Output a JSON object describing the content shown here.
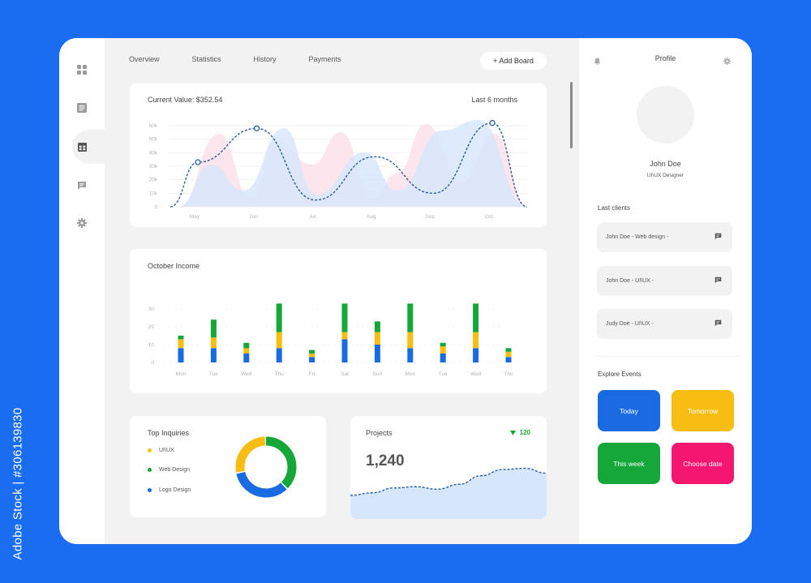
{
  "colors": {
    "page_bg": "#1a6df0",
    "blue": "#1a6be2",
    "yellow": "#f7bd13",
    "green": "#15a73a",
    "pink": "#f4166f",
    "line_dashed": "#2a5d9c",
    "area_blue": "#d6e6fb",
    "area_pink": "#fbe1ea"
  },
  "sidebar": {
    "icons": [
      "dashboard-grid-icon",
      "document-list-icon",
      "calendar-icon",
      "chat-icon",
      "settings-gear-icon"
    ]
  },
  "nav": {
    "tabs": [
      "Overview",
      "Statistics",
      "History",
      "Payments"
    ],
    "add_board": "+ Add Board"
  },
  "line_card": {
    "title": "Current Value: $352.54",
    "period": "Last 6 months"
  },
  "bar_card": {
    "title": "October Income"
  },
  "inquiries": {
    "title": "Top Inquiries",
    "items": [
      {
        "label": "UI\\UX",
        "color": "#f7bd13"
      },
      {
        "label": "Web Design",
        "color": "#15a73a"
      },
      {
        "label": "Logo Design",
        "color": "#1a6be2"
      }
    ]
  },
  "projects": {
    "title": "Projects",
    "value": "1,240",
    "change": "120",
    "change_icon": "triangle-down-icon"
  },
  "profile": {
    "label": "Profile",
    "name": "John Doe",
    "role": "UI\\UX Designer"
  },
  "last_clients": {
    "title": "Last clients",
    "items": [
      "John Doe - Web design -",
      "John Doe - UI\\UX -",
      "Judy Doe - UI\\UX -"
    ]
  },
  "events": {
    "title": "Explore Events",
    "buttons": [
      {
        "label": "Today",
        "color": "#1a6be2"
      },
      {
        "label": "Tomorrow",
        "color": "#f7bd13"
      },
      {
        "label": "This week",
        "color": "#15a73a"
      },
      {
        "label": "Choose date",
        "color": "#f4166f"
      }
    ]
  },
  "watermark": "Adobe Stock | #306139830",
  "chart_data": [
    {
      "type": "line",
      "x": [
        "May",
        "Jun",
        "Jul",
        "Aug",
        "Sep",
        "Oct"
      ],
      "y_ticks": [
        "0",
        "10k",
        "20k",
        "30k",
        "40k",
        "50k",
        "60k"
      ],
      "ylim": [
        0,
        60000
      ],
      "grid": true,
      "series_points": [
        {
          "x": "May",
          "y": 33000
        },
        {
          "x": "Jun",
          "y": 58000
        },
        {
          "x": "Jul",
          "y": 5000
        },
        {
          "x": "Aug",
          "y": 37000
        },
        {
          "x": "Sep",
          "y": 10000
        },
        {
          "x": "Oct",
          "y": 62000
        }
      ],
      "markers": [
        {
          "x": "May",
          "y": 33000
        },
        {
          "x": "Jun",
          "y": 58000
        },
        {
          "x": "Oct",
          "y": 62000
        }
      ]
    },
    {
      "type": "bar",
      "stacked": true,
      "categories": [
        "Mon",
        "Tue",
        "Wed",
        "Thu",
        "Fri",
        "Sat",
        "Sun",
        "Mon",
        "Tue",
        "Wed",
        "Thu"
      ],
      "y_ticks": [
        "0",
        "10",
        "20",
        "30"
      ],
      "ylim": [
        0,
        35
      ],
      "series": [
        {
          "color": "#1a6be2",
          "values": [
            8,
            8,
            5,
            8,
            3,
            13,
            10,
            8,
            5,
            8,
            3
          ]
        },
        {
          "color": "#f7bd13",
          "values": [
            5,
            6,
            3,
            9,
            2,
            4,
            7,
            9,
            4,
            9,
            3
          ]
        },
        {
          "color": "#15a73a",
          "values": [
            2,
            10,
            3,
            16,
            2,
            16,
            6,
            16,
            2,
            16,
            2
          ]
        }
      ]
    },
    {
      "type": "pie",
      "donut": true,
      "slices": [
        {
          "label": "UI\\UX",
          "value": 28,
          "color": "#f7bd13"
        },
        {
          "label": "Web Design",
          "value": 38,
          "color": "#15a73a"
        },
        {
          "label": "Logo Design",
          "value": 34,
          "color": "#1a6be2"
        }
      ]
    },
    {
      "type": "area",
      "sparkline": true,
      "values": [
        2,
        2.4,
        3.2,
        3.4,
        3,
        3.8,
        5.2,
        6.2,
        6.4,
        5.6
      ]
    }
  ]
}
